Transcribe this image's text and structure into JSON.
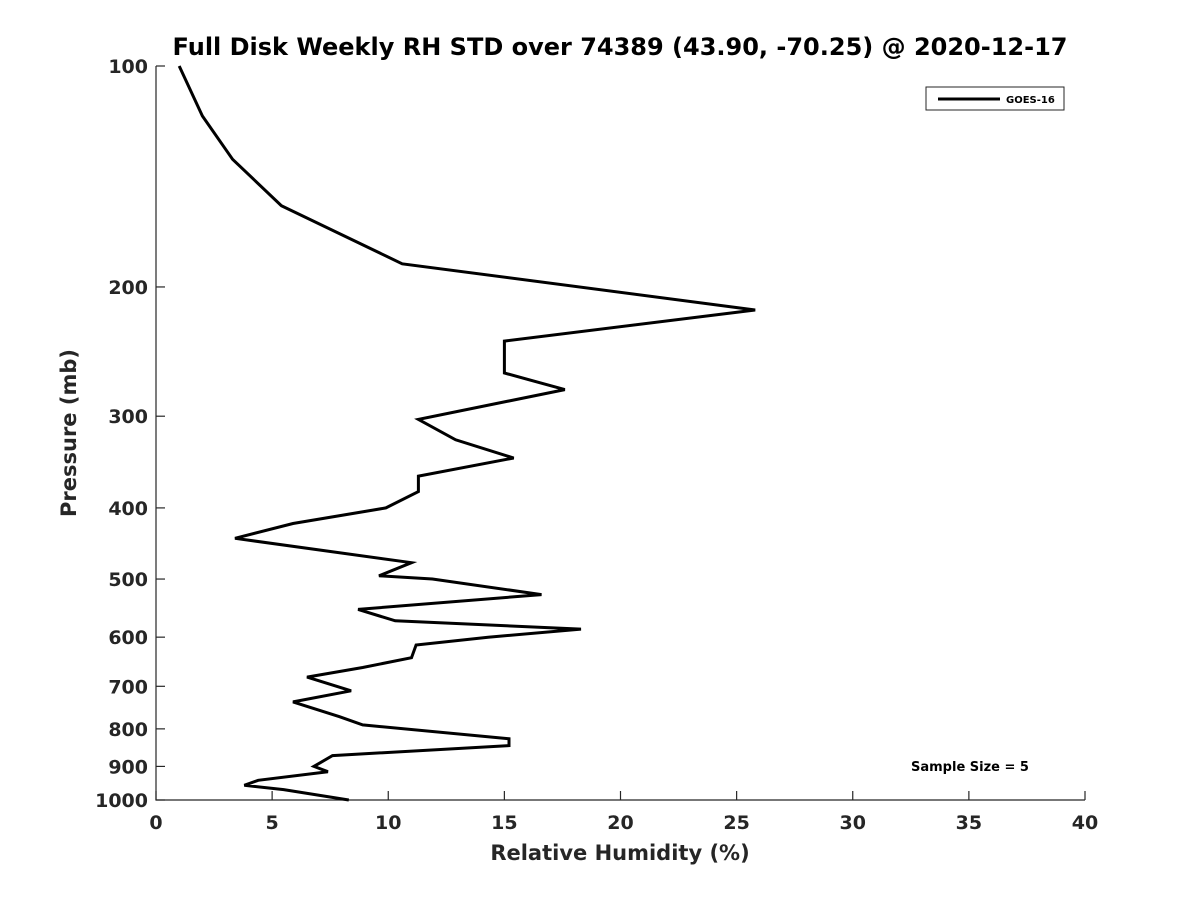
{
  "chart_data": {
    "type": "line",
    "title": "Full Disk Weekly RH STD over 74389 (43.90, -70.25) @ 2020-12-17",
    "xlabel": "Relative Humidity (%)",
    "ylabel": "Pressure (mb)",
    "xlim": [
      0,
      40
    ],
    "ylim": [
      100,
      1000
    ],
    "y_scale": "log",
    "y_reversed": true,
    "x_ticks": [
      "0",
      "5",
      "10",
      "15",
      "20",
      "25",
      "30",
      "35",
      "40"
    ],
    "y_ticks": [
      "100",
      "200",
      "300",
      "400",
      "500",
      "600",
      "700",
      "800",
      "900",
      "1000"
    ],
    "grid": false,
    "legend_position": "top-right",
    "series": [
      {
        "name": "GOES-16",
        "color": "#000000",
        "points": [
          [
            1.0,
            100
          ],
          [
            2.0,
            117
          ],
          [
            3.3,
            134
          ],
          [
            5.4,
            155
          ],
          [
            10.6,
            186
          ],
          [
            25.8,
            215
          ],
          [
            15.0,
            237
          ],
          [
            15.0,
            262
          ],
          [
            17.6,
            276
          ],
          [
            11.3,
            303
          ],
          [
            12.9,
            323
          ],
          [
            15.4,
            342
          ],
          [
            11.3,
            362
          ],
          [
            11.3,
            380
          ],
          [
            9.9,
            400
          ],
          [
            5.9,
            420
          ],
          [
            3.4,
            440
          ],
          [
            11.0,
            475
          ],
          [
            9.6,
            495
          ],
          [
            11.9,
            500
          ],
          [
            16.6,
            525
          ],
          [
            8.7,
            550
          ],
          [
            10.3,
            570
          ],
          [
            18.3,
            585
          ],
          [
            14.3,
            600
          ],
          [
            11.2,
            615
          ],
          [
            11.0,
            640
          ],
          [
            8.9,
            660
          ],
          [
            6.5,
            680
          ],
          [
            8.4,
            710
          ],
          [
            5.9,
            735
          ],
          [
            7.9,
            770
          ],
          [
            8.9,
            790
          ],
          [
            15.2,
            825
          ],
          [
            15.2,
            843
          ],
          [
            7.6,
            870
          ],
          [
            6.8,
            900
          ],
          [
            7.4,
            915
          ],
          [
            4.4,
            940
          ],
          [
            3.8,
            955
          ],
          [
            5.5,
            968
          ],
          [
            8.3,
            1000
          ]
        ]
      }
    ],
    "annotation": "Sample Size = 5"
  }
}
